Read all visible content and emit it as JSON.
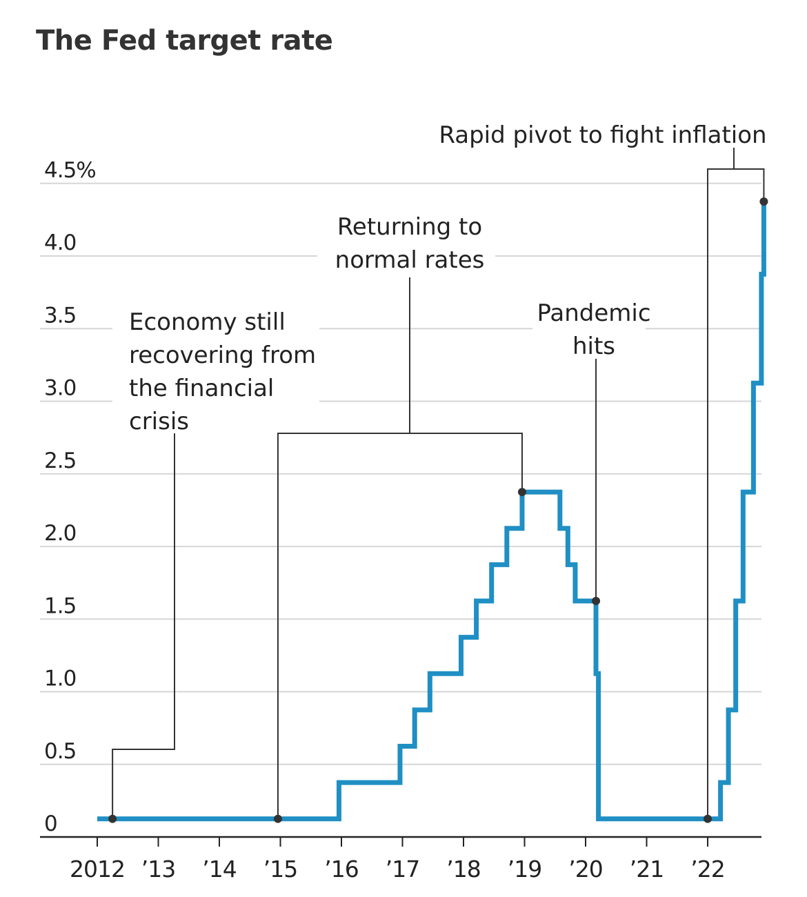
{
  "title": "The Fed target rate",
  "chart_data": {
    "type": "line",
    "title": "The Fed target rate",
    "step": true,
    "color": "#1f8fc4",
    "ylim": [
      0,
      4.5
    ],
    "xlim": [
      2012,
      2022.92
    ],
    "grid": true,
    "y_ticks": [
      {
        "value": 0,
        "label": "0"
      },
      {
        "value": 0.5,
        "label": "0.5"
      },
      {
        "value": 1.0,
        "label": "1.0"
      },
      {
        "value": 1.5,
        "label": "1.5"
      },
      {
        "value": 2.0,
        "label": "2.0"
      },
      {
        "value": 2.5,
        "label": "2.5"
      },
      {
        "value": 3.0,
        "label": "3.0"
      },
      {
        "value": 3.5,
        "label": "3.5"
      },
      {
        "value": 4.0,
        "label": "4.0"
      },
      {
        "value": 4.5,
        "label": "4.5%"
      }
    ],
    "x_ticks": [
      {
        "value": 2012,
        "label": "2012"
      },
      {
        "value": 2013,
        "label": "’13"
      },
      {
        "value": 2014,
        "label": "’14"
      },
      {
        "value": 2015,
        "label": "’15"
      },
      {
        "value": 2016,
        "label": "’16"
      },
      {
        "value": 2017,
        "label": "’17"
      },
      {
        "value": 2018,
        "label": "’18"
      },
      {
        "value": 2019,
        "label": "’19"
      },
      {
        "value": 2020,
        "label": "’20"
      },
      {
        "value": 2021,
        "label": "’21"
      },
      {
        "value": 2022,
        "label": "’22"
      }
    ],
    "series": [
      {
        "points": [
          {
            "x": 2012.0,
            "y": 0.125
          },
          {
            "x": 2015.96,
            "y": 0.375
          },
          {
            "x": 2016.96,
            "y": 0.625
          },
          {
            "x": 2017.2,
            "y": 0.875
          },
          {
            "x": 2017.45,
            "y": 1.125
          },
          {
            "x": 2017.96,
            "y": 1.375
          },
          {
            "x": 2018.21,
            "y": 1.625
          },
          {
            "x": 2018.46,
            "y": 1.875
          },
          {
            "x": 2018.71,
            "y": 2.125
          },
          {
            "x": 2018.96,
            "y": 2.375
          },
          {
            "x": 2019.58,
            "y": 2.125
          },
          {
            "x": 2019.71,
            "y": 1.875
          },
          {
            "x": 2019.83,
            "y": 1.625
          },
          {
            "x": 2020.17,
            "y": 1.125
          },
          {
            "x": 2020.21,
            "y": 0.125
          },
          {
            "x": 2022.21,
            "y": 0.375
          },
          {
            "x": 2022.34,
            "y": 0.875
          },
          {
            "x": 2022.46,
            "y": 1.625
          },
          {
            "x": 2022.58,
            "y": 2.375
          },
          {
            "x": 2022.75,
            "y": 3.125
          },
          {
            "x": 2022.88,
            "y": 3.875
          },
          {
            "x": 2022.92,
            "y": 4.375
          }
        ]
      }
    ],
    "annotations": [
      {
        "text": [
          "Economy still",
          "recovering from",
          "the financial",
          "crisis"
        ],
        "points": [
          {
            "x": 2012.25,
            "y": 0.125
          }
        ]
      },
      {
        "text": [
          "Returning to",
          "normal rates"
        ],
        "points": [
          {
            "x": 2014.96,
            "y": 0.125
          },
          {
            "x": 2018.96,
            "y": 2.375
          }
        ]
      },
      {
        "text": [
          "Pandemic",
          "hits"
        ],
        "points": [
          {
            "x": 2020.17,
            "y": 1.625
          }
        ]
      },
      {
        "text": [
          "Rapid pivot to fight inflation"
        ],
        "points": [
          {
            "x": 2022.0,
            "y": 0.125
          },
          {
            "x": 2022.92,
            "y": 4.375
          }
        ]
      }
    ]
  }
}
